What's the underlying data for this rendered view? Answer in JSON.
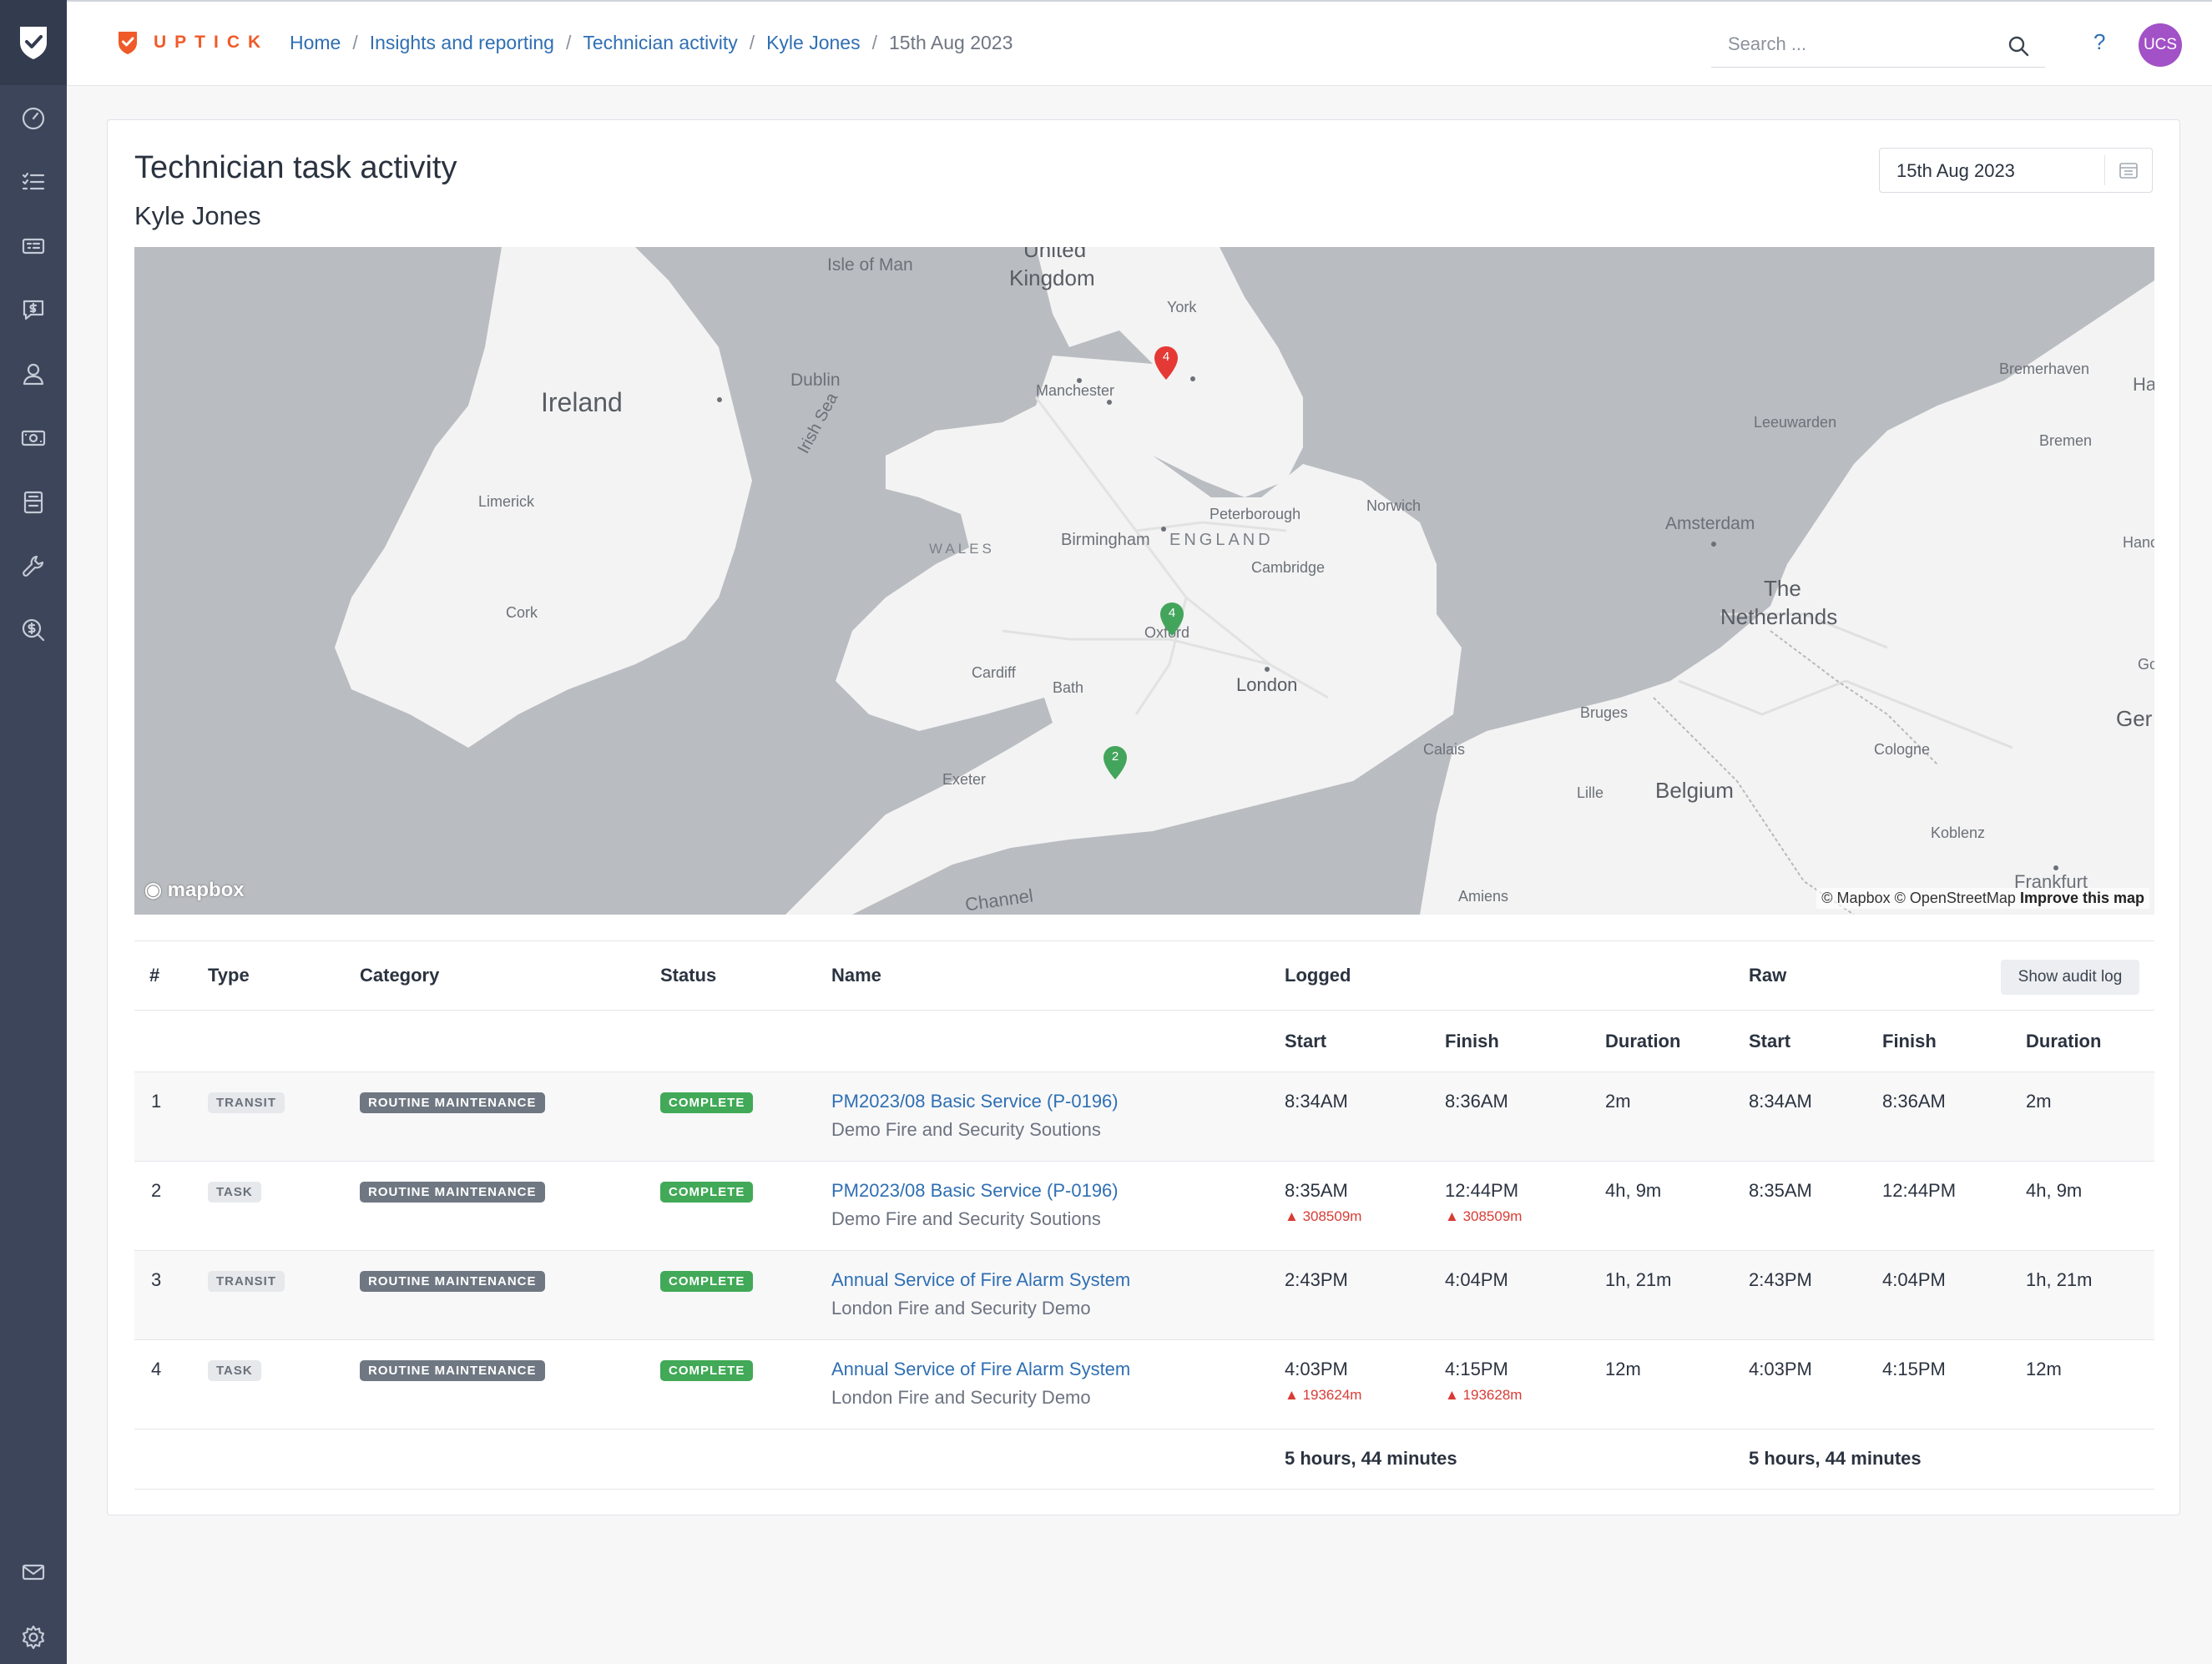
{
  "app": {
    "brand": "UPTICK"
  },
  "breadcrumb": {
    "items": [
      "Home",
      "Insights and reporting",
      "Technician activity",
      "Kyle Jones"
    ],
    "current": "15th Aug 2023"
  },
  "search": {
    "placeholder": "Search ..."
  },
  "help_label": "?",
  "avatar_initials": "UCS",
  "page": {
    "title": "Technician task activity",
    "technician": "Kyle Jones",
    "date": "15th Aug 2023"
  },
  "map": {
    "labels": {
      "ireland": "Ireland",
      "uk1": "United",
      "uk2": "Kingdom",
      "isle_of_man": "Isle of Man",
      "irish_sea": "Irish Sea",
      "dublin": "Dublin",
      "limerick": "Limerick",
      "cork": "Cork",
      "york": "York",
      "manchester": "Manchester",
      "wales": "WALES",
      "birmingham": "Birmingham",
      "england": "ENGLAND",
      "peterborough": "Peterborough",
      "norwich": "Norwich",
      "cambridge": "Cambridge",
      "oxford": "Oxford",
      "cardiff": "Cardiff",
      "bath": "Bath",
      "london": "London",
      "exeter": "Exeter",
      "channel": "Channel",
      "calais": "Calais",
      "bruges": "Bruges",
      "lille": "Lille",
      "belgium": "Belgium",
      "amsterdam": "Amsterdam",
      "the": "The",
      "netherlands": "Netherlands",
      "leeuwarden": "Leeuwarden",
      "bremerhaven": "Bremerhaven",
      "bremen": "Bremen",
      "cologne": "Cologne",
      "koblenz": "Koblenz",
      "frankfurt": "Frankfurt",
      "amiens": "Amiens",
      "ha": "Ha",
      "hanc": "Hanc",
      "go": "Go",
      "ger": "Ger"
    },
    "pins": [
      {
        "label": "4",
        "color": "#e53935"
      },
      {
        "label": "4",
        "color": "#43a55b"
      },
      {
        "label": "2",
        "color": "#43a55b"
      }
    ],
    "logo": "mapbox",
    "attribution": "© Mapbox © OpenStreetMap",
    "improve": "Improve this map"
  },
  "table": {
    "headers": {
      "num": "#",
      "type": "Type",
      "category": "Category",
      "status": "Status",
      "name": "Name",
      "logged": "Logged",
      "raw": "Raw",
      "start": "Start",
      "finish": "Finish",
      "duration": "Duration"
    },
    "audit_button": "Show audit log",
    "rows": [
      {
        "num": "1",
        "type": "TRANSIT",
        "category": "ROUTINE MAINTENANCE",
        "status": "COMPLETE",
        "name": "PM2023/08 Basic Service (P-0196)",
        "client": "Demo Fire and Security Soutions",
        "logged_start": "8:34AM",
        "logged_finish": "8:36AM",
        "logged_duration": "2m",
        "raw_start": "8:34AM",
        "raw_finish": "8:36AM",
        "raw_duration": "2m",
        "start_warn": "",
        "finish_warn": ""
      },
      {
        "num": "2",
        "type": "TASK",
        "category": "ROUTINE MAINTENANCE",
        "status": "COMPLETE",
        "name": "PM2023/08 Basic Service (P-0196)",
        "client": "Demo Fire and Security Soutions",
        "logged_start": "8:35AM",
        "logged_finish": "12:44PM",
        "logged_duration": "4h, 9m",
        "raw_start": "8:35AM",
        "raw_finish": "12:44PM",
        "raw_duration": "4h, 9m",
        "start_warn": "308509m",
        "finish_warn": "308509m"
      },
      {
        "num": "3",
        "type": "TRANSIT",
        "category": "ROUTINE MAINTENANCE",
        "status": "COMPLETE",
        "name": "Annual Service of Fire Alarm System",
        "client": "London Fire and Security Demo",
        "logged_start": "2:43PM",
        "logged_finish": "4:04PM",
        "logged_duration": "1h, 21m",
        "raw_start": "2:43PM",
        "raw_finish": "4:04PM",
        "raw_duration": "1h, 21m",
        "start_warn": "",
        "finish_warn": ""
      },
      {
        "num": "4",
        "type": "TASK",
        "category": "ROUTINE MAINTENANCE",
        "status": "COMPLETE",
        "name": "Annual Service of Fire Alarm System",
        "client": "London Fire and Security Demo",
        "logged_start": "4:03PM",
        "logged_finish": "4:15PM",
        "logged_duration": "12m",
        "raw_start": "4:03PM",
        "raw_finish": "4:15PM",
        "raw_duration": "12m",
        "start_warn": "193624m",
        "finish_warn": "193628m"
      }
    ],
    "totals": {
      "logged": "5 hours, 44 minutes",
      "raw": "5 hours, 44 minutes"
    }
  }
}
